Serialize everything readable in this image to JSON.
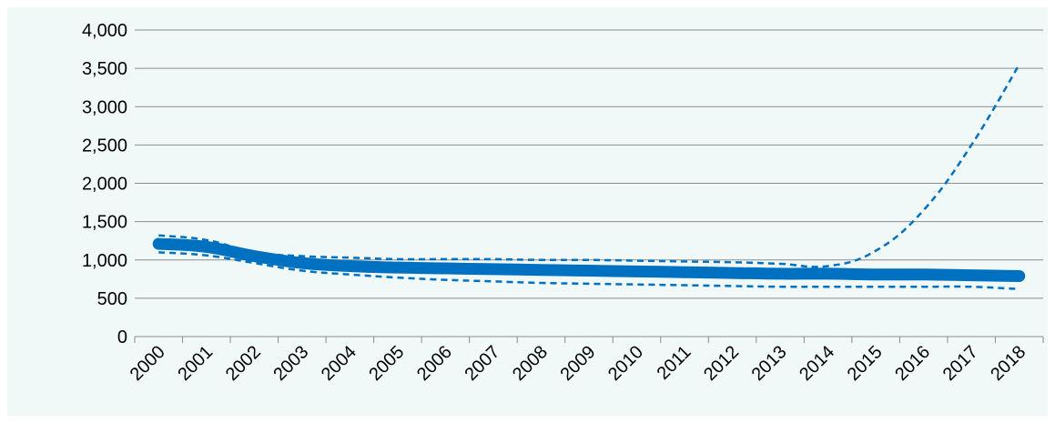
{
  "chart_data": {
    "type": "line",
    "title": "",
    "xlabel": "",
    "ylabel": "",
    "categories": [
      "2000",
      "2001",
      "2002",
      "2003",
      "2004",
      "2005",
      "2006",
      "2007",
      "2008",
      "2009",
      "2010",
      "2011",
      "2012",
      "2013",
      "2014",
      "2015",
      "2016",
      "2017",
      "2018"
    ],
    "ylim": [
      0,
      4000
    ],
    "yticks": [
      0,
      500,
      1000,
      1500,
      2000,
      2500,
      3000,
      3500,
      4000
    ],
    "ytick_labels": [
      "0",
      "500",
      "1,000",
      "1,500",
      "2,000",
      "2,500",
      "3,000",
      "3,500",
      "4,000"
    ],
    "grid": "horizontal",
    "legend": "none",
    "series": [
      {
        "style": "solid-thick",
        "color": "#0070c0",
        "values": [
          1210,
          1170,
          1050,
          960,
          920,
          900,
          890,
          880,
          870,
          860,
          850,
          840,
          830,
          820,
          820,
          810,
          810,
          800,
          790
        ]
      },
      {
        "style": "dashed",
        "color": "#0070c0",
        "values": [
          1320,
          1260,
          1100,
          1050,
          1030,
          1010,
          1010,
          1010,
          1000,
          1000,
          990,
          980,
          970,
          950,
          920,
          1120,
          1650,
          2500,
          3550
        ]
      },
      {
        "style": "dashed",
        "color": "#0070c0",
        "values": [
          1100,
          1060,
          960,
          860,
          810,
          770,
          740,
          720,
          700,
          690,
          680,
          670,
          660,
          650,
          650,
          650,
          650,
          650,
          620
        ]
      }
    ]
  }
}
